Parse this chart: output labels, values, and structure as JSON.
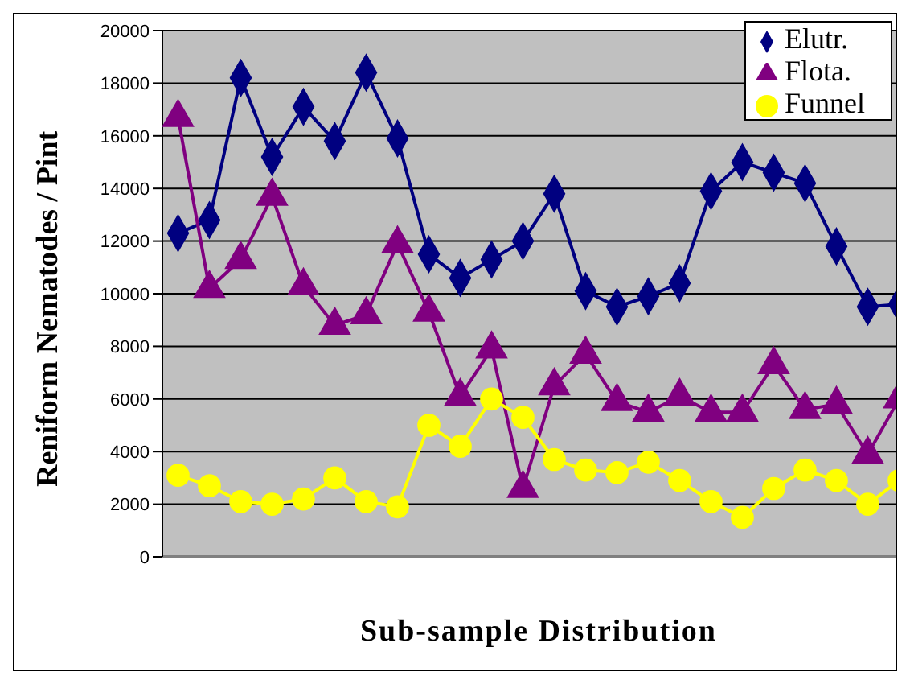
{
  "chart_data": {
    "type": "line",
    "xlabel": "Sub-sample Distribution",
    "ylabel": "Reniform Nematodes / Pint",
    "categories": [
      null,
      null,
      null,
      null,
      null,
      null,
      null,
      null,
      null,
      null,
      null,
      null,
      null,
      null,
      null,
      null,
      null,
      null,
      null,
      null,
      null,
      null,
      null,
      null
    ],
    "series": [
      {
        "name": "Elutr.",
        "color": "#000080",
        "marker": "diamond",
        "values": [
          12300,
          12800,
          18200,
          15200,
          17100,
          15800,
          18400,
          15900,
          11500,
          10600,
          11300,
          12000,
          13800,
          10100,
          9500,
          9900,
          10400,
          13900,
          15000,
          14600,
          14200,
          11800,
          9500,
          9600
        ]
      },
      {
        "name": "Flota.",
        "color": "#800080",
        "marker": "triangle",
        "values": [
          16700,
          10200,
          11300,
          13700,
          10300,
          8800,
          9200,
          11900,
          9300,
          6100,
          7900,
          2600,
          6500,
          7700,
          5900,
          5500,
          6100,
          5500,
          5500,
          7300,
          5600,
          5800,
          3900,
          6000
        ]
      },
      {
        "name": "Funnel",
        "color": "#ffff00",
        "marker": "circle",
        "values": [
          3100,
          2700,
          2100,
          2000,
          2200,
          3000,
          2100,
          1900,
          5000,
          4200,
          6000,
          5300,
          3700,
          3300,
          3200,
          3600,
          2900,
          2100,
          1500,
          2600,
          3300,
          2900,
          2000,
          2900
        ]
      }
    ],
    "ylim": [
      0,
      20000
    ],
    "yticks": [
      0,
      2000,
      4000,
      6000,
      8000,
      10000,
      12000,
      14000,
      16000,
      18000,
      20000
    ],
    "grid": "y",
    "legend": "top right",
    "tick_labels": "y",
    "line_style": "solid"
  }
}
